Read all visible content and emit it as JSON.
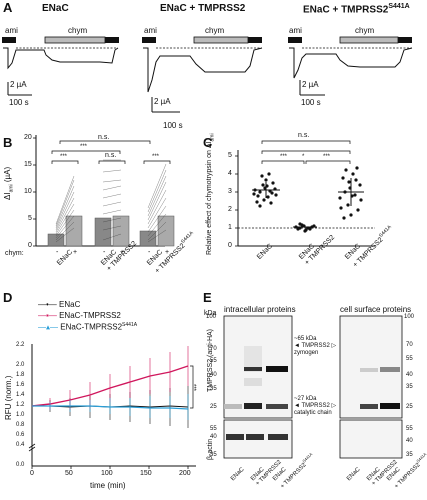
{
  "panels": {
    "A": {
      "label": "A",
      "conditions": [
        "ENaC",
        "ENaC + TMPRSS2",
        "ENaC + TMPRSS2"
      ],
      "condition3_sup": "S441A",
      "ami": "ami",
      "chym": "chym",
      "scale": [
        "2 µA",
        "100 s",
        "2 µA",
        "100 s",
        "2 µA",
        "100 s"
      ]
    },
    "B": {
      "label": "B",
      "ylabel": "ΔI",
      "ylabel_sub": "ami",
      "ylabel_unit": "(µA)",
      "yticks": [
        "0",
        "5",
        "10",
        "15",
        "20"
      ],
      "chym_label": "chym:",
      "chym_ticks": [
        "-",
        "+",
        "-",
        "+",
        "-",
        "+"
      ],
      "groups": [
        "ENaC",
        "ENaC",
        "ENaC"
      ],
      "groups_sub": [
        "",
        "+ TMPRSS2",
        "+ TMPRSS2"
      ],
      "group3_sup": "S441A",
      "sig": [
        "***",
        "***",
        "n.s.",
        "***",
        "n.s."
      ]
    },
    "C": {
      "label": "C",
      "ylabel": "Relative effect of chymotrypsin on ΔI",
      "ylabel_sub": "ami",
      "yticks": [
        "0",
        "1",
        "2",
        "3",
        "4",
        "5"
      ],
      "groups": [
        "ENaC",
        "ENaC",
        "ENaC"
      ],
      "groups_sub": [
        "",
        "+ TMPRSS2",
        "+ TMPRSS2"
      ],
      "group3_sup": "S441A",
      "sig": [
        "***",
        "*",
        "***",
        "n.s."
      ]
    },
    "D": {
      "label": "D",
      "legend": [
        "ENaC",
        "ENaC-TMPRSS2",
        "ENaC-TMPRSS2"
      ],
      "legend3_sup": "S441A",
      "ylabel": "RFU (norm.)",
      "xlabel": "time (min)",
      "yticks": [
        "0.0",
        "0.4",
        "0.6",
        "0.8",
        "1.0",
        "1.2",
        "1.4",
        "1.6",
        "1.8",
        "2.0",
        "2.2"
      ],
      "xticks": [
        "0",
        "50",
        "100",
        "150",
        "200"
      ],
      "sig": "***",
      "colors": {
        "enac": "#111111",
        "tmprss2": "#d0175d",
        "s441a": "#2a9fd8"
      }
    },
    "E": {
      "label": "E",
      "left_title": "intracellular proteins",
      "right_title": "cell surface proteins",
      "kda": "kDa",
      "ylabel": "TMPRSS2 (anti-HA)",
      "actin": "β-actin",
      "mw_left": [
        "100",
        "70",
        "55",
        "40",
        "35",
        "25",
        "55",
        "40",
        "35"
      ],
      "mw_right": [
        "100",
        "70",
        "55",
        "40",
        "35",
        "25",
        "55",
        "40",
        "35"
      ],
      "band_upper": [
        "~65 kDa",
        "TMPRSS2",
        "zymogen"
      ],
      "band_lower": [
        "~27 kDa",
        "TMPRSS2",
        "catalytic chain"
      ],
      "lanes": [
        "ENaC",
        "ENaC",
        "ENaC"
      ],
      "lanes_sub": [
        "",
        "+ TMPRSS2",
        "+ TMPRSS2"
      ],
      "lane3_sup": "S441A"
    }
  }
}
